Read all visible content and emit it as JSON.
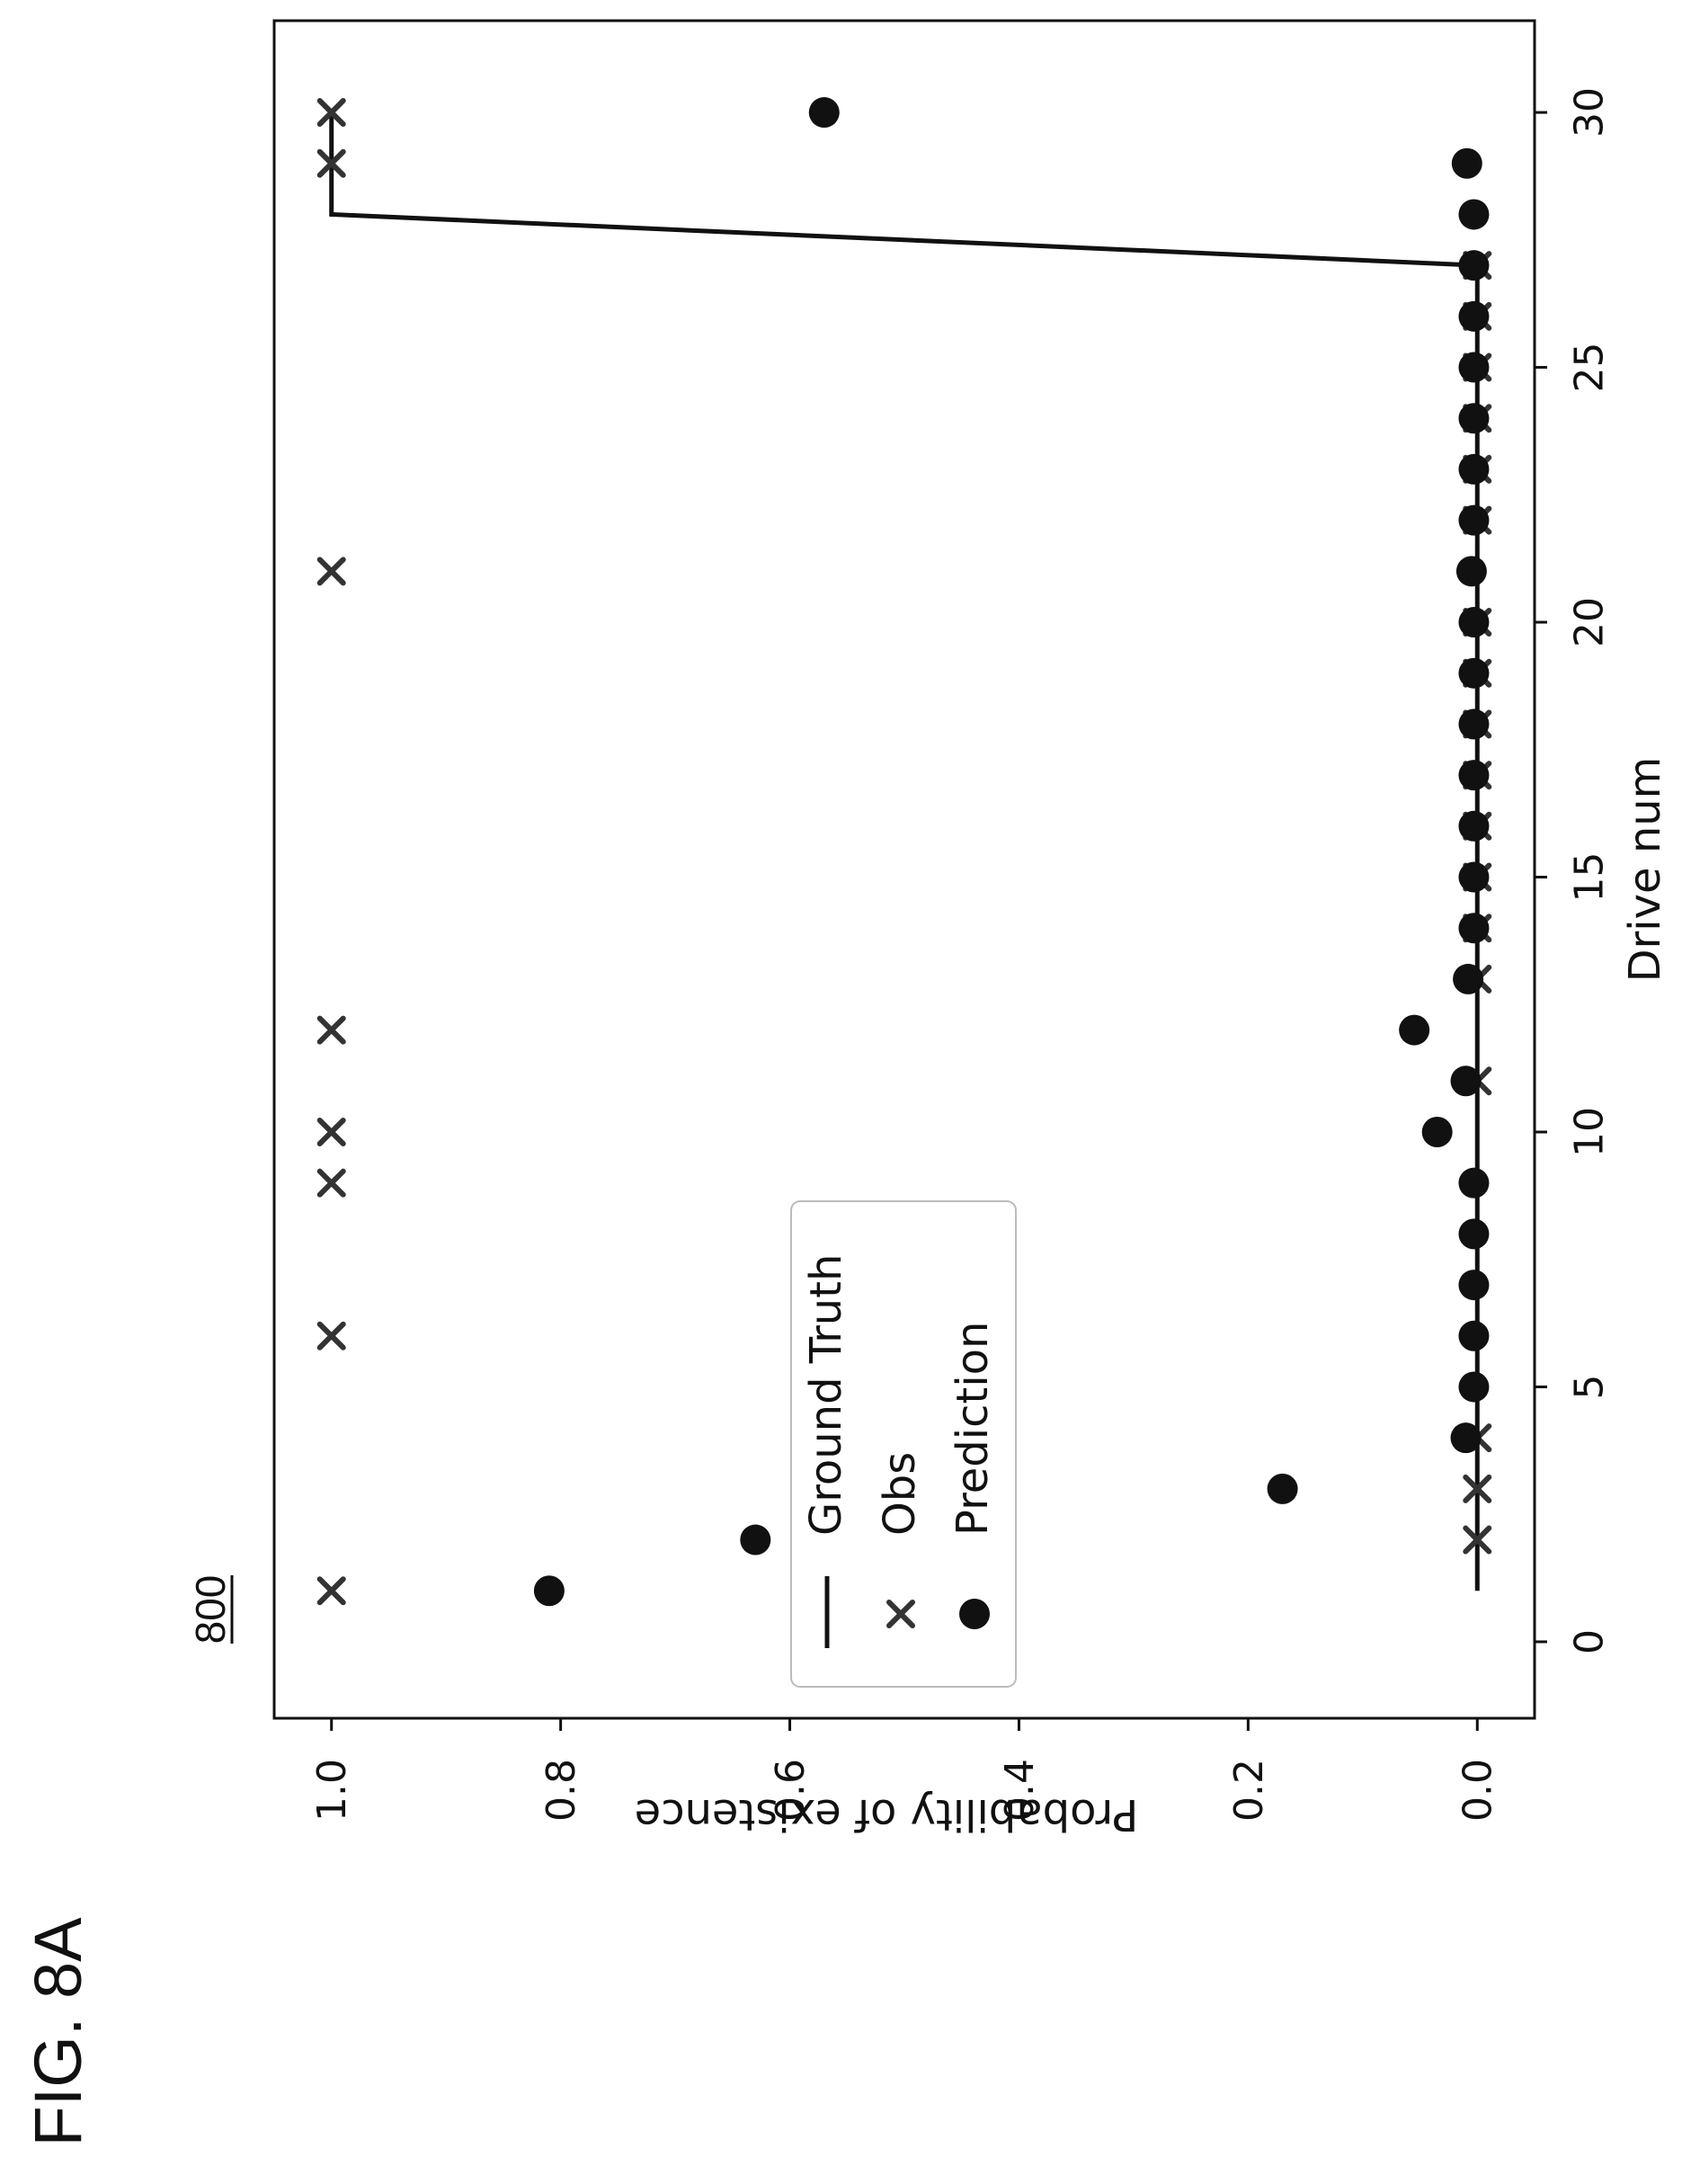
{
  "figure_label": "FIG. 8A",
  "reference_numeral": "800",
  "chart_data": {
    "type": "scatter",
    "title": "",
    "xlabel": "Drive num",
    "ylabel": "Probability of existence",
    "xlim": [
      -1.5,
      31.8
    ],
    "ylim": [
      -0.05,
      1.05
    ],
    "xticks": [
      "0",
      "5",
      "10",
      "15",
      "20",
      "25",
      "30"
    ],
    "yticks": [
      "0.0",
      "0.2",
      "0.4",
      "0.6",
      "0.8",
      "1.0"
    ],
    "grid": false,
    "legend_position": "upper-left",
    "series": [
      {
        "name": "Ground Truth",
        "kind": "line",
        "x": [
          1,
          2,
          3,
          4,
          5,
          6,
          7,
          8,
          9,
          10,
          11,
          12,
          13,
          14,
          15,
          16,
          17,
          18,
          19,
          20,
          21,
          22,
          23,
          24,
          25,
          26,
          27,
          28,
          29,
          30
        ],
        "y": [
          0,
          0,
          0,
          0,
          0,
          0,
          0,
          0,
          0,
          0,
          0,
          0,
          0,
          0,
          0,
          0,
          0,
          0,
          0,
          0,
          0,
          0,
          0,
          0,
          0,
          0,
          0,
          1,
          1,
          1
        ]
      },
      {
        "name": "Obs",
        "kind": "x-marker",
        "x": [
          1,
          2,
          3,
          4,
          6,
          9,
          10,
          11,
          12,
          13,
          14,
          15,
          16,
          17,
          18,
          19,
          20,
          21,
          22,
          23,
          24,
          25,
          26,
          27,
          29,
          30
        ],
        "y": [
          1,
          0,
          0,
          0,
          1,
          1,
          1,
          0,
          1,
          0,
          0,
          0,
          0,
          0,
          0,
          0,
          0,
          1,
          0,
          0,
          0,
          0,
          0,
          0,
          1,
          1
        ]
      },
      {
        "name": "Prediction",
        "kind": "dot-marker",
        "x": [
          1,
          2,
          3,
          4,
          5,
          6,
          7,
          8,
          9,
          10,
          11,
          12,
          13,
          14,
          15,
          16,
          17,
          18,
          19,
          20,
          21,
          22,
          23,
          24,
          25,
          26,
          27,
          28,
          29,
          30
        ],
        "y": [
          0.81,
          0.63,
          0.17,
          0.01,
          0.003,
          0.003,
          0.003,
          0.003,
          0.003,
          0.035,
          0.01,
          0.055,
          0.008,
          0.003,
          0.003,
          0.003,
          0.003,
          0.003,
          0.003,
          0.003,
          0.005,
          0.003,
          0.003,
          0.003,
          0.003,
          0.003,
          0.003,
          0.003,
          0.009,
          0.57
        ]
      }
    ]
  }
}
